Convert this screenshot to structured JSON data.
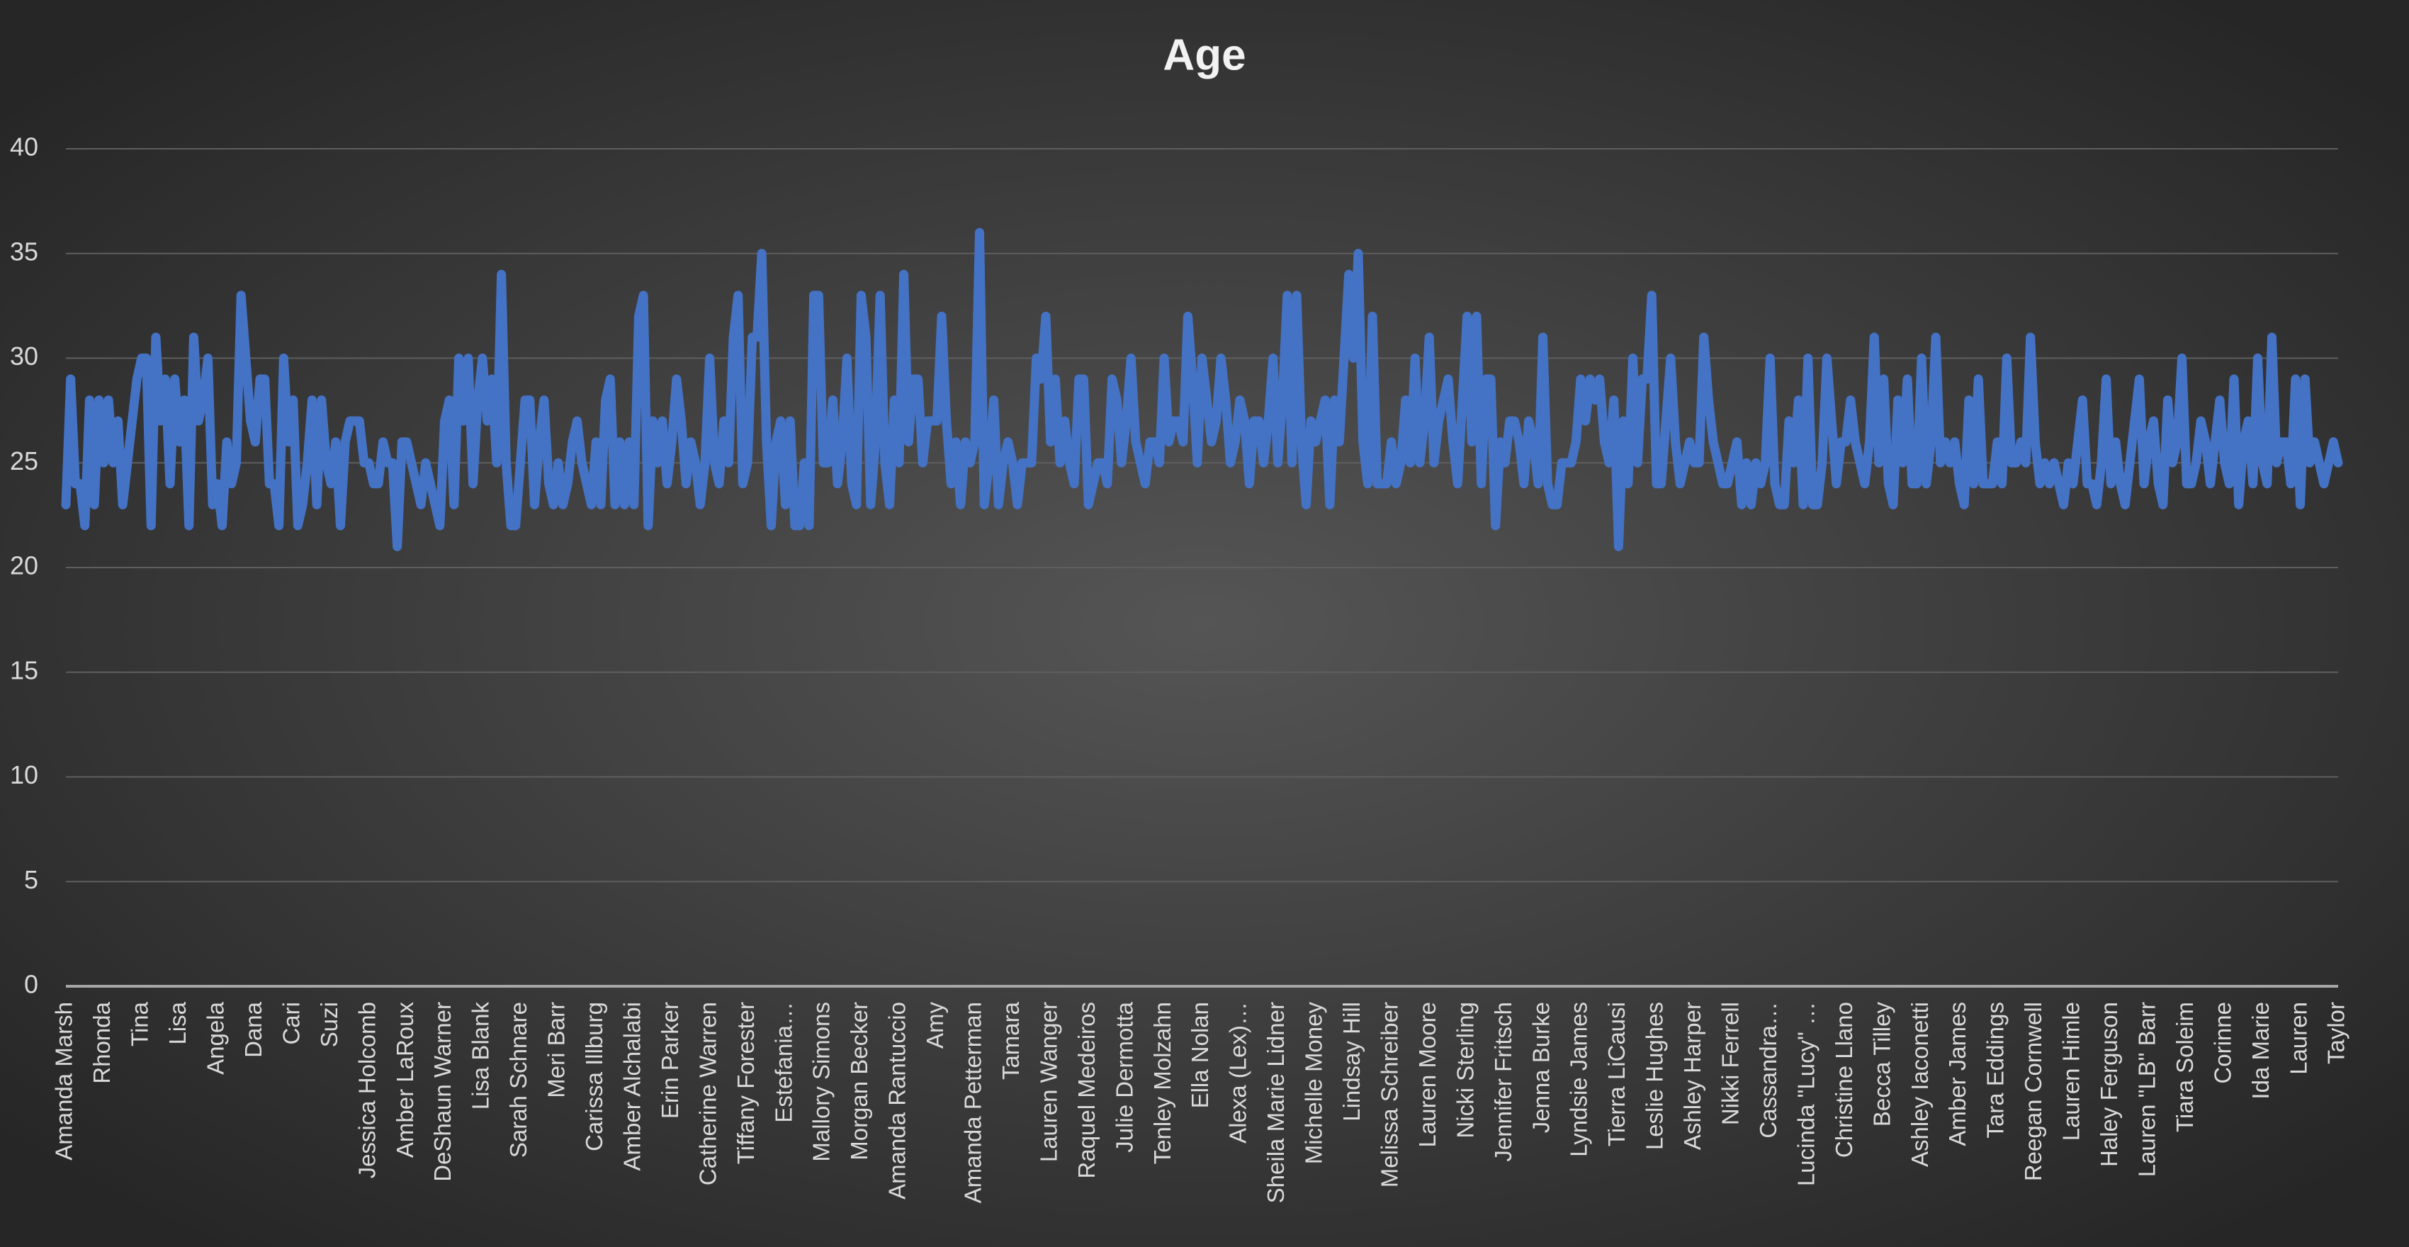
{
  "chart_data": {
    "type": "line",
    "title": "Age",
    "categories": [
      "Amanda Marsh",
      null,
      null,
      null,
      null,
      null,
      null,
      null,
      "Rhonda",
      null,
      null,
      null,
      null,
      null,
      null,
      null,
      "Tina",
      null,
      null,
      null,
      null,
      null,
      null,
      null,
      "Lisa",
      null,
      null,
      null,
      null,
      null,
      null,
      null,
      "Angela",
      null,
      null,
      null,
      null,
      null,
      null,
      null,
      "Dana",
      null,
      null,
      null,
      null,
      null,
      null,
      null,
      "Cari",
      null,
      null,
      null,
      null,
      null,
      null,
      null,
      "Suzi",
      null,
      null,
      null,
      null,
      null,
      null,
      null,
      "Jessica Holcomb",
      null,
      null,
      null,
      null,
      null,
      null,
      null,
      "Amber LaRoux",
      null,
      null,
      null,
      null,
      null,
      null,
      null,
      "DeShaun Warner",
      null,
      null,
      null,
      null,
      null,
      null,
      null,
      "Lisa Blank",
      null,
      null,
      null,
      null,
      null,
      null,
      null,
      "Sarah Schnare",
      null,
      null,
      null,
      null,
      null,
      null,
      null,
      "Meri Barr",
      null,
      null,
      null,
      null,
      null,
      null,
      null,
      "Carissa Illburg",
      null,
      null,
      null,
      null,
      null,
      null,
      null,
      "Amber Alchalabi",
      null,
      null,
      null,
      null,
      null,
      null,
      null,
      "Erin Parker",
      null,
      null,
      null,
      null,
      null,
      null,
      null,
      "Catherine Warren",
      null,
      null,
      null,
      null,
      null,
      null,
      null,
      "Tiffany Forester",
      null,
      null,
      null,
      null,
      null,
      null,
      null,
      "Estefania…",
      null,
      null,
      null,
      null,
      null,
      null,
      null,
      "Mallory Simons",
      null,
      null,
      null,
      null,
      null,
      null,
      null,
      "Morgan Becker",
      null,
      null,
      null,
      null,
      null,
      null,
      null,
      "Amanda Rantuccio",
      null,
      null,
      null,
      null,
      null,
      null,
      null,
      "Amy",
      null,
      null,
      null,
      null,
      null,
      null,
      null,
      "Amanda Petterman",
      null,
      null,
      null,
      null,
      null,
      null,
      null,
      "Tamara",
      null,
      null,
      null,
      null,
      null,
      null,
      null,
      "Lauren Wanger",
      null,
      null,
      null,
      null,
      null,
      null,
      null,
      "Raquel Medeiros",
      null,
      null,
      null,
      null,
      null,
      null,
      null,
      "Julie Dermotta",
      null,
      null,
      null,
      null,
      null,
      null,
      null,
      "Tenley Molzahn",
      null,
      null,
      null,
      null,
      null,
      null,
      null,
      "Ella Nolan",
      null,
      null,
      null,
      null,
      null,
      null,
      null,
      "Alexa (Lex)…",
      null,
      null,
      null,
      null,
      null,
      null,
      null,
      "Sheila Marie Lidner",
      null,
      null,
      null,
      null,
      null,
      null,
      null,
      "Michelle Money",
      null,
      null,
      null,
      null,
      null,
      null,
      null,
      "Lindsay Hill",
      null,
      null,
      null,
      null,
      null,
      null,
      null,
      "Melissa Schreiber",
      null,
      null,
      null,
      null,
      null,
      null,
      null,
      "Lauren Moore",
      null,
      null,
      null,
      null,
      null,
      null,
      null,
      "Nicki Sterling",
      null,
      null,
      null,
      null,
      null,
      null,
      null,
      "Jennifer Fritsch",
      null,
      null,
      null,
      null,
      null,
      null,
      null,
      "Jenna Burke",
      null,
      null,
      null,
      null,
      null,
      null,
      null,
      "Lyndsie James",
      null,
      null,
      null,
      null,
      null,
      null,
      null,
      "Tierra LiCausi",
      null,
      null,
      null,
      null,
      null,
      null,
      null,
      "Leslie Hughes",
      null,
      null,
      null,
      null,
      null,
      null,
      null,
      "Ashley Harper",
      null,
      null,
      null,
      null,
      null,
      null,
      null,
      "Nikki Ferrell",
      null,
      null,
      null,
      null,
      null,
      null,
      null,
      "Cassandra…",
      null,
      null,
      null,
      null,
      null,
      null,
      null,
      "Lucinda \"Lucy\" …",
      null,
      null,
      null,
      null,
      null,
      null,
      null,
      "Christine Llano",
      null,
      null,
      null,
      null,
      null,
      null,
      null,
      "Becca Tilley",
      null,
      null,
      null,
      null,
      null,
      null,
      null,
      "Ashley Iaconetti",
      null,
      null,
      null,
      null,
      null,
      null,
      null,
      "Amber James",
      null,
      null,
      null,
      null,
      null,
      null,
      null,
      "Tara Eddings",
      null,
      null,
      null,
      null,
      null,
      null,
      null,
      "Reegan Cornwell",
      null,
      null,
      null,
      null,
      null,
      null,
      null,
      "Lauren Himle",
      null,
      null,
      null,
      null,
      null,
      null,
      null,
      "Haley Ferguson",
      null,
      null,
      null,
      null,
      null,
      null,
      null,
      "Lauren \"LB\" Barr",
      null,
      null,
      null,
      null,
      null,
      null,
      null,
      "Tiara Soleim",
      null,
      null,
      null,
      null,
      null,
      null,
      null,
      "Corinne",
      null,
      null,
      null,
      null,
      null,
      null,
      null,
      "Ida Marie",
      null,
      null,
      null,
      null,
      null,
      null,
      null,
      "Lauren",
      null,
      null,
      null,
      null,
      null,
      null,
      null,
      "Taylor"
    ],
    "values": [
      23,
      29,
      24,
      24,
      22,
      28,
      23,
      28,
      25,
      28,
      25,
      27,
      23,
      25,
      27,
      29,
      30,
      30,
      22,
      31,
      27,
      29,
      24,
      29,
      26,
      28,
      22,
      31,
      27,
      28,
      30,
      23,
      24,
      22,
      26,
      24,
      25,
      33,
      30,
      27,
      26,
      29,
      29,
      24,
      24,
      22,
      30,
      26,
      28,
      22,
      23,
      25,
      28,
      23,
      28,
      25,
      24,
      26,
      22,
      26,
      27,
      27,
      27,
      25,
      25,
      24,
      24,
      26,
      25,
      25,
      21,
      26,
      26,
      25,
      24,
      23,
      25,
      24,
      23,
      22,
      27,
      28,
      23,
      30,
      27,
      30,
      24,
      28,
      30,
      27,
      29,
      25,
      34,
      25,
      22,
      22,
      25,
      28,
      28,
      23,
      26,
      28,
      24,
      23,
      25,
      23,
      24,
      26,
      27,
      25,
      24,
      23,
      26,
      23,
      28,
      29,
      23,
      26,
      23,
      26,
      23,
      32,
      33,
      22,
      27,
      25,
      27,
      24,
      26,
      29,
      27,
      24,
      26,
      25,
      23,
      25,
      30,
      25,
      24,
      27,
      25,
      31,
      33,
      24,
      25,
      31,
      31,
      35,
      26,
      22,
      26,
      27,
      23,
      27,
      22,
      22,
      25,
      22,
      33,
      33,
      25,
      25,
      28,
      24,
      26,
      30,
      24,
      23,
      33,
      31,
      23,
      26,
      33,
      25,
      23,
      28,
      25,
      34,
      26,
      29,
      29,
      25,
      27,
      27,
      27,
      32,
      27,
      24,
      26,
      23,
      26,
      25,
      26,
      36,
      23,
      25,
      28,
      23,
      25,
      26,
      25,
      23,
      25,
      25,
      25,
      30,
      29,
      32,
      26,
      29,
      25,
      27,
      25,
      24,
      29,
      29,
      23,
      24,
      25,
      25,
      24,
      29,
      28,
      25,
      27,
      30,
      26,
      25,
      24,
      26,
      26,
      25,
      30,
      26,
      27,
      27,
      26,
      32,
      29,
      25,
      30,
      28,
      26,
      27,
      30,
      28,
      25,
      26,
      28,
      27,
      24,
      27,
      27,
      25,
      27,
      30,
      25,
      28,
      33,
      25,
      33,
      26,
      23,
      27,
      26,
      27,
      28,
      23,
      28,
      26,
      30,
      34,
      30,
      35,
      26,
      24,
      32,
      24,
      24,
      24,
      26,
      24,
      25,
      28,
      25,
      30,
      25,
      27,
      31,
      25,
      27,
      28,
      29,
      26,
      24,
      28,
      32,
      26,
      32,
      24,
      29,
      29,
      22,
      26,
      25,
      27,
      27,
      26,
      24,
      27,
      26,
      24,
      31,
      24,
      23,
      23,
      25,
      25,
      25,
      26,
      29,
      27,
      29,
      28,
      29,
      26,
      25,
      28,
      21,
      27,
      24,
      30,
      25,
      29,
      29,
      33,
      24,
      24,
      27,
      30,
      26,
      24,
      25,
      26,
      25,
      25,
      31,
      28,
      26,
      25,
      24,
      24,
      25,
      26,
      23,
      25,
      23,
      25,
      24,
      25,
      30,
      24,
      23,
      23,
      27,
      25,
      28,
      23,
      30,
      23,
      23,
      25,
      30,
      27,
      24,
      26,
      26,
      28,
      26,
      25,
      24,
      26,
      31,
      25,
      29,
      24,
      23,
      28,
      25,
      29,
      24,
      24,
      30,
      24,
      26,
      31,
      25,
      26,
      25,
      26,
      24,
      23,
      28,
      24,
      29,
      24,
      24,
      24,
      26,
      24,
      30,
      25,
      25,
      26,
      25,
      31,
      26,
      24,
      25,
      24,
      25,
      24,
      23,
      25,
      24,
      26,
      28,
      24,
      24,
      23,
      25,
      29,
      24,
      26,
      24,
      23,
      25,
      27,
      29,
      24,
      26,
      27,
      24,
      23,
      28,
      25,
      26,
      30,
      24,
      24,
      25,
      27,
      26,
      24,
      26,
      28,
      25,
      24,
      29,
      23,
      26,
      27,
      24,
      30,
      25,
      24,
      31,
      25,
      26,
      26,
      24,
      29,
      23,
      29,
      25,
      26,
      25,
      24,
      25,
      26,
      25
    ],
    "color": "#4472c4",
    "ylim": [
      0,
      40
    ],
    "yticks": [
      0,
      5,
      10,
      15,
      20,
      25,
      30,
      35,
      40
    ],
    "grid": true
  }
}
